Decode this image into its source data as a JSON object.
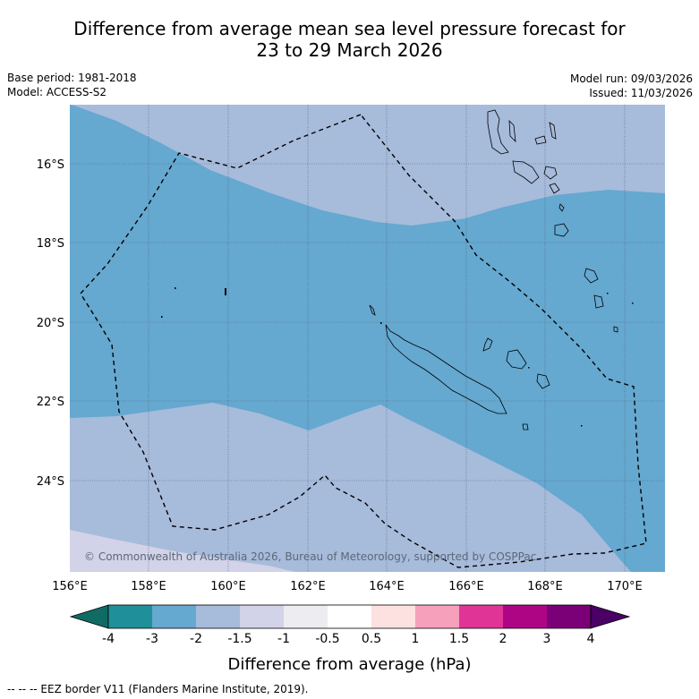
{
  "title_line1": "Difference from average mean sea level pressure forecast for",
  "title_line2": "23 to 29 March 2026",
  "base_period": "Base period: 1981-2018",
  "model": "Model: ACCESS-S2",
  "model_run": "Model run: 09/03/2026",
  "issued": "Issued: 11/03/2026",
  "copyright": "© Commonwealth of Australia 2026, Bureau of Meteorology, supported by COSPPac",
  "lon_labels": [
    "156°E",
    "158°E",
    "160°E",
    "162°E",
    "164°E",
    "166°E",
    "168°E",
    "170°E"
  ],
  "lat_labels": [
    "16°S",
    "18°S",
    "20°S",
    "22°S",
    "24°S"
  ],
  "colorbar": {
    "label": "Difference from average (hPa)",
    "ticks": [
      "-4",
      "-3",
      "-2",
      "-1.5",
      "-1",
      "-0.5",
      "0.5",
      "1",
      "1.5",
      "2",
      "3",
      "4"
    ],
    "colors": [
      "#0f6b63",
      "#1f9099",
      "#65a8d0",
      "#a7bbdb",
      "#d2d2e8",
      "#ececf1",
      "#ffffff",
      "#fde0e0",
      "#f6a0bc",
      "#e03597",
      "#ae0585",
      "#7b0078",
      "#4a0064"
    ]
  },
  "footer": "-- -- -- EEZ border V11 (Flanders Marine Institute, 2019)."
}
